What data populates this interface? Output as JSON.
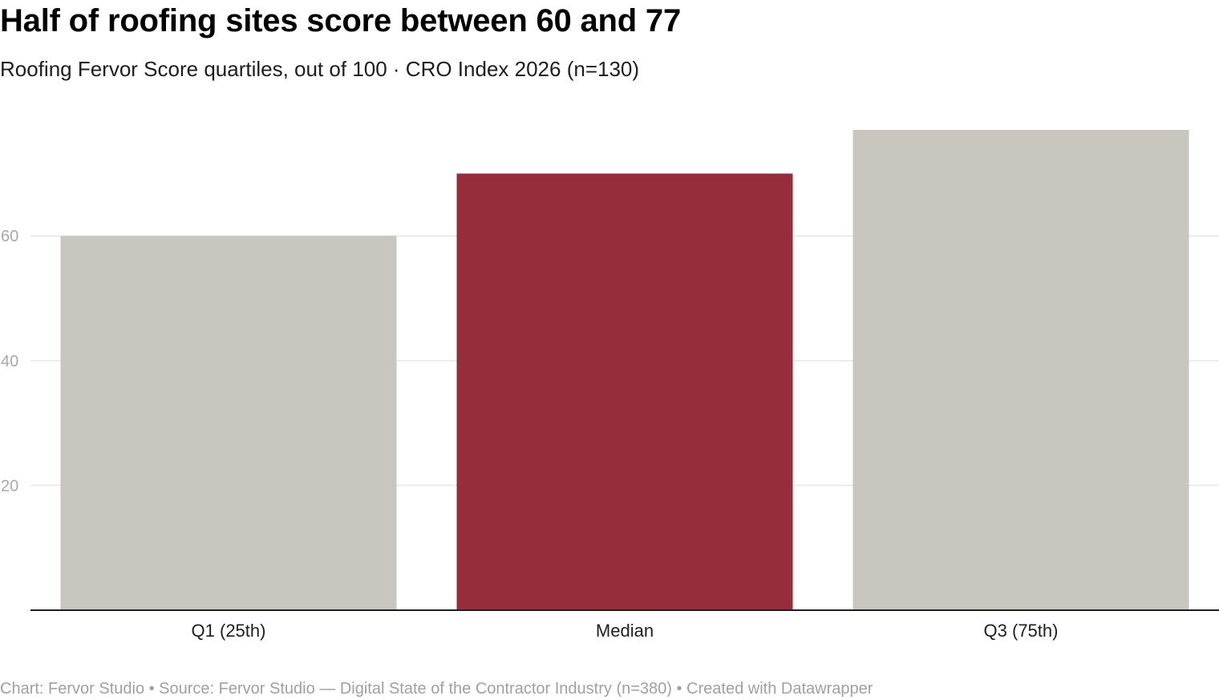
{
  "title": "Half of roofing sites score between 60 and 77",
  "subtitle": "Roofing Fervor Score quartiles, out of 100 · CRO Index 2026 (n=130)",
  "footer": "Chart: Fervor Studio • Source: Fervor Studio — Digital State of the Contractor Industry (n=380) • Created with Datawrapper",
  "chart_data": {
    "type": "bar",
    "categories": [
      "Q1 (25th)",
      "Median",
      "Q3 (75th)"
    ],
    "values": [
      60,
      70,
      77
    ],
    "ylim": [
      0,
      77
    ],
    "yticks": [
      20,
      40,
      60
    ],
    "grid": true,
    "colors": {
      "default": "#c9c6c0",
      "highlight": "#962d3a",
      "gridline": "#e6e6e6",
      "baseline": "#1e1e1e"
    },
    "highlight_index": 1
  }
}
